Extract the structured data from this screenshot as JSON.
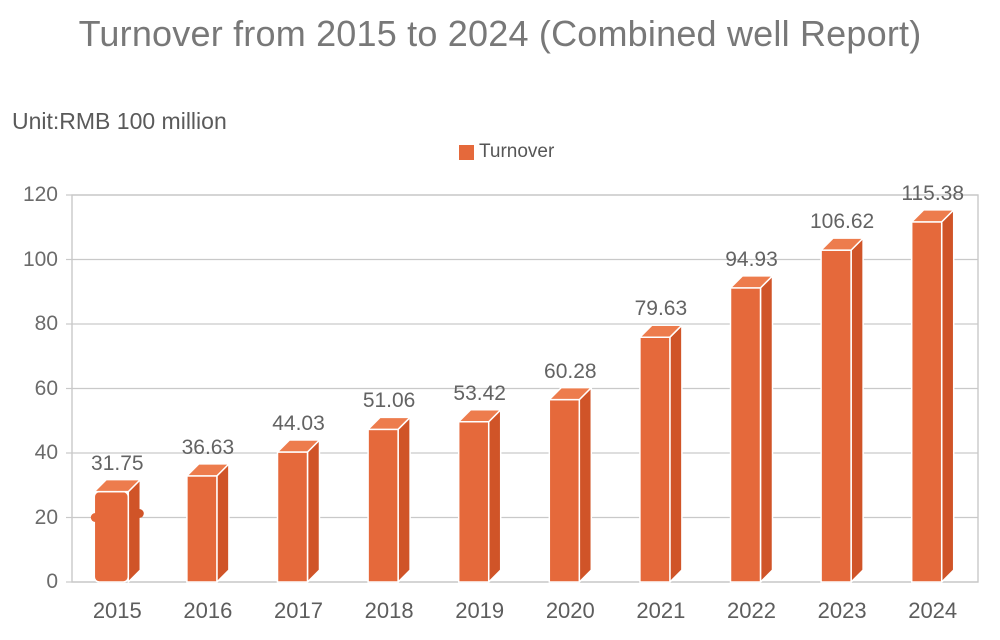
{
  "header": {
    "title": "Turnover from 2015 to 2024 (Combined well Report)",
    "unit_label": "Unit:RMB 100 million"
  },
  "legend": {
    "label": "Turnover",
    "swatch_color": "#E5693B",
    "position": "top-center"
  },
  "chart_data": {
    "type": "bar",
    "title": "Turnover from 2015 to 2024 (Combined well Report)",
    "unit_label": "Unit:RMB 100 million",
    "bar_style": "3d",
    "categories": [
      "2015",
      "2016",
      "2017",
      "2018",
      "2019",
      "2020",
      "2021",
      "2022",
      "2023",
      "2024"
    ],
    "series": [
      {
        "name": "Turnover",
        "values": [
          31.75,
          36.63,
          44.03,
          51.06,
          53.42,
          60.28,
          79.63,
          94.93,
          106.62,
          115.38
        ]
      }
    ],
    "xlabel": "",
    "ylabel": "",
    "ylim": [
      0,
      120
    ],
    "yticks": [
      0,
      20,
      40,
      60,
      80,
      100,
      120
    ],
    "grid": true,
    "legend_position": "top-center",
    "colors": {
      "bar_front": "#E5693B",
      "bar_side": "#D05428",
      "bar_top": "#ED7C4D",
      "edge": "#FFFFFF",
      "grid": "#C9C9C9",
      "axis_text": "#6B6B6B",
      "xaxis_text": "#5D5D5D",
      "value_text": "#636363",
      "title_text": "#787878",
      "unit_text": "#5A5A5A",
      "legend_text": "#565656"
    }
  }
}
